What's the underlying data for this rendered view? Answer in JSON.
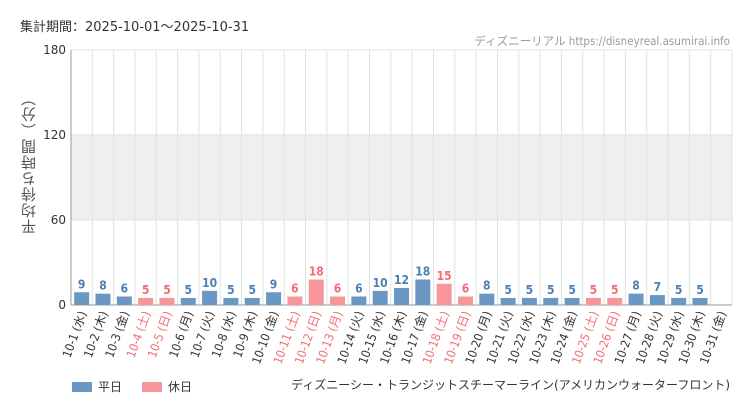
{
  "header": {
    "period_label": "集計期間：2025-10-01〜2025-10-31",
    "source_label": "ディズニーリアル https://disneyreal.asumirai.info"
  },
  "footer": {
    "attraction_name": "ディズニーシー・トランジットスチーマーライン(アメリカンウォーターフロント)"
  },
  "colors": {
    "weekday": "#6b97c3",
    "holiday": "#f7959a",
    "weekday_text": "#4c7fb3",
    "holiday_text": "#f36c73",
    "band": "#efefef",
    "grid": "#e2e2e2"
  },
  "chart_data": {
    "type": "bar",
    "ylabel": "平均待ち時間（分）",
    "ylim": [
      0,
      180
    ],
    "yticks": [
      0,
      60,
      120,
      180
    ],
    "legend": [
      {
        "label": "平日",
        "kind": "weekday"
      },
      {
        "label": "休日",
        "kind": "holiday"
      }
    ],
    "categories": [
      "10-1 (水)",
      "10-2 (木)",
      "10-3 (金)",
      "10-4 (土)",
      "10-5 (日)",
      "10-6 (月)",
      "10-7 (火)",
      "10-8 (水)",
      "10-9 (木)",
      "10-10 (金)",
      "10-11 (土)",
      "10-12 (日)",
      "10-13 (月)",
      "10-14 (火)",
      "10-15 (水)",
      "10-16 (木)",
      "10-17 (金)",
      "10-18 (土)",
      "10-19 (日)",
      "10-20 (月)",
      "10-21 (火)",
      "10-22 (水)",
      "10-23 (木)",
      "10-24 (金)",
      "10-25 (土)",
      "10-26 (日)",
      "10-27 (月)",
      "10-28 (火)",
      "10-29 (水)",
      "10-30 (木)",
      "10-31 (金)"
    ],
    "values": [
      9,
      8,
      6,
      5,
      5,
      5,
      10,
      5,
      5,
      9,
      6,
      18,
      6,
      6,
      10,
      12,
      18,
      15,
      6,
      8,
      5,
      5,
      5,
      5,
      5,
      5,
      8,
      7,
      5,
      5,
      null
    ],
    "holiday": [
      false,
      false,
      false,
      true,
      true,
      false,
      false,
      false,
      false,
      false,
      true,
      true,
      true,
      false,
      false,
      false,
      false,
      true,
      true,
      false,
      false,
      false,
      false,
      false,
      true,
      true,
      false,
      false,
      false,
      false,
      false
    ]
  }
}
